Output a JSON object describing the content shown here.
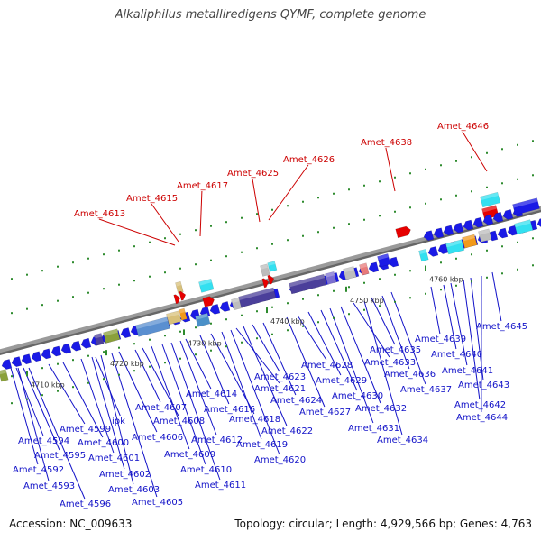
{
  "title": "Alkaliphilus metalliredigens QYMF, complete genome",
  "accession": "Accession: NC_009633",
  "stats": "Topology: circular; Length: 4,929,566 bp; Genes: 4,763",
  "colors": {
    "backbone": "#9a9a9a",
    "gene_forward": "#1a1ae6",
    "gene_highlight": "#e60000",
    "gene_cyan": "#33e0f0",
    "gene_gray": "#bdbdbd",
    "gene_purple": "#4b3f9a",
    "gene_olive": "#8aa03a",
    "gene_tan": "#d8c07a",
    "gene_orange": "#f29a1a",
    "tick": "#2e8b2e",
    "label_blue": "#1212c8",
    "label_red": "#cc0000"
  },
  "ticks": [
    "4710 kbp",
    "4720 kbp",
    "4730 kbp",
    "4740 kbp",
    "4750 kbp",
    "4760 kbp"
  ],
  "red_labels": [
    "Amet_4613",
    "Amet_4615",
    "Amet_4617",
    "Amet_4625",
    "Amet_4626",
    "Amet_4638",
    "Amet_4646"
  ],
  "blue_labels": [
    "Amet_4594",
    "Amet_4595",
    "Amet_4592",
    "Amet_4593",
    "Amet_4596",
    "Amet_4599",
    "Amet_4600",
    "Amet_4601",
    "ipk",
    "Amet_4602",
    "Amet_4603",
    "Amet_4605",
    "Amet_4606",
    "Amet_4607",
    "Amet_4608",
    "Amet_4609",
    "Amet_4610",
    "Amet_4611",
    "Amet_4612",
    "Amet_4614",
    "Amet_4616",
    "Amet_4618",
    "Amet_4619",
    "Amet_4620",
    "Amet_4621",
    "Amet_4622",
    "Amet_4623",
    "Amet_4624",
    "Amet_4627",
    "Amet_4628",
    "Amet_4629",
    "Amet_4630",
    "Amet_4631",
    "Amet_4632",
    "Amet_4633",
    "Amet_4634",
    "Amet_4635",
    "Amet_4636",
    "Amet_4637",
    "Amet_4639",
    "Amet_4640",
    "Amet_4641",
    "Amet_4642",
    "Amet_4643",
    "Amet_4644",
    "Amet_4645"
  ]
}
